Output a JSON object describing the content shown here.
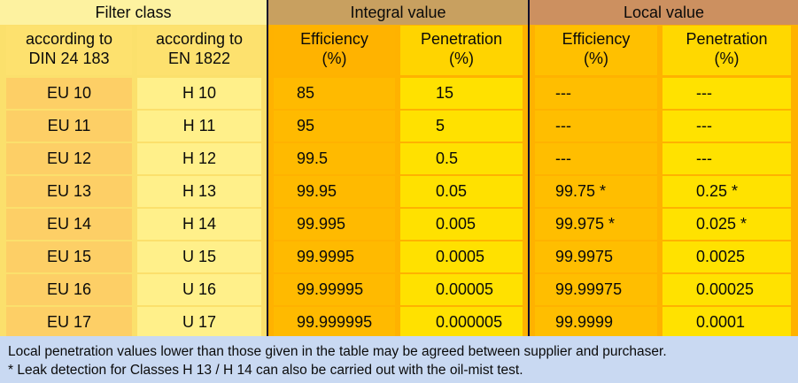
{
  "headers": {
    "filter_class": "Filter class",
    "integral_value": "Integral value",
    "local_value": "Local value"
  },
  "subheaders": {
    "din": [
      "according to",
      "DIN 24 183"
    ],
    "en": [
      "according to",
      "EN  1822"
    ],
    "integral_efficiency": [
      "Efficiency",
      "(%)"
    ],
    "integral_penetration": [
      "Penetration",
      "(%)"
    ],
    "local_efficiency": [
      "Efficiency",
      "(%)"
    ],
    "local_penetration": [
      "Penetration",
      "(%)"
    ]
  },
  "rows": [
    {
      "din": "EU 10",
      "en": "H 10",
      "int_eff": "85",
      "int_pen": "15",
      "loc_eff": "---",
      "loc_pen": "---"
    },
    {
      "din": "EU 11",
      "en": "H 11",
      "int_eff": "95",
      "int_pen": "5",
      "loc_eff": "---",
      "loc_pen": "---"
    },
    {
      "din": "EU 12",
      "en": "H 12",
      "int_eff": "99.5",
      "int_pen": "0.5",
      "loc_eff": "---",
      "loc_pen": "---"
    },
    {
      "din": "EU 13",
      "en": "H 13",
      "int_eff": "99.95",
      "int_pen": "0.05",
      "loc_eff": "99.75 *",
      "loc_pen": "0.25 *"
    },
    {
      "din": "EU 14",
      "en": "H 14",
      "int_eff": "99.995",
      "int_pen": "0.005",
      "loc_eff": "99.975 *",
      "loc_pen": "0.025 *"
    },
    {
      "din": "EU 15",
      "en": "U 15",
      "int_eff": "99.9995",
      "int_pen": "0.0005",
      "loc_eff": "99.9975",
      "loc_pen": "0.0025"
    },
    {
      "din": "EU 16",
      "en": "U 16",
      "int_eff": "99.99995",
      "int_pen": "0.00005",
      "loc_eff": "99.99975",
      "loc_pen": "0.00025"
    },
    {
      "din": "EU 17",
      "en": "U 17",
      "int_eff": "99.999995",
      "int_pen": "0.000005",
      "loc_eff": "99.9999",
      "loc_pen": "0.0001"
    }
  ],
  "footer": {
    "note1": "Local penetration values lower than those given in the table may be agreed between supplier and purchaser.",
    "note2": "* Leak detection for Classes H 13 / H 14 can also be carried out with the oil-mist test."
  }
}
